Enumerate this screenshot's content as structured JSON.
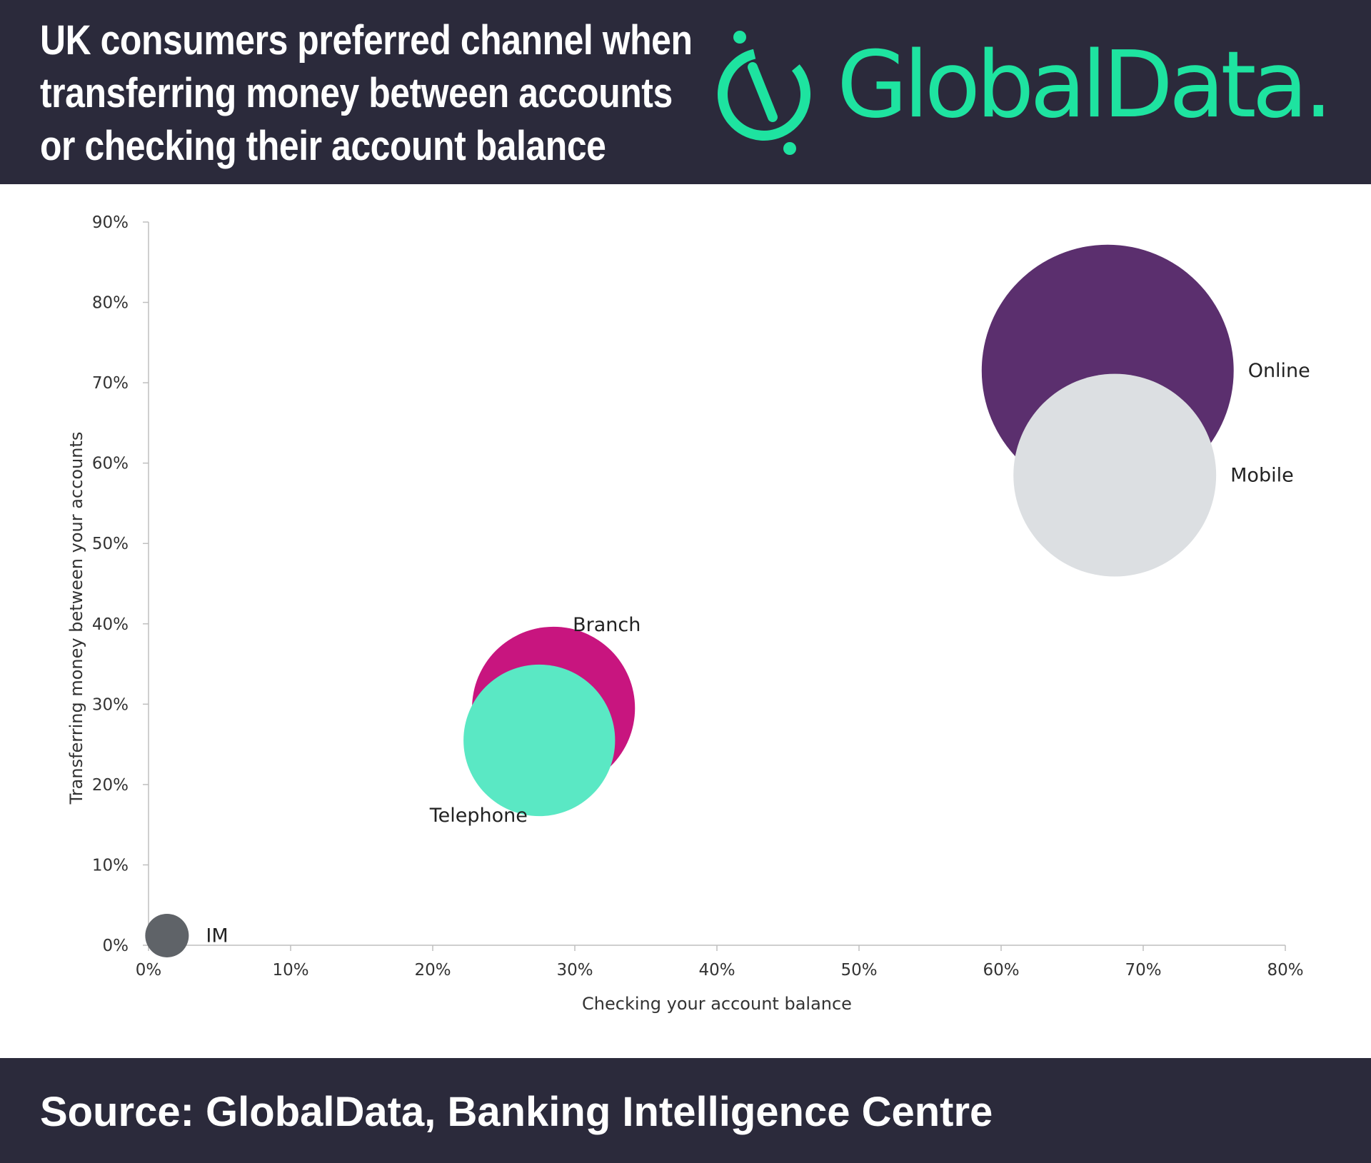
{
  "header": {
    "title_lines": [
      "UK consumers preferred channel when",
      "transferring money between accounts",
      "or checking their account balance"
    ],
    "logo_text": "GlobalData."
  },
  "footer": {
    "source": "Source: GlobalData, Banking Intelligence Centre"
  },
  "colors": {
    "header_bg": "#2b2a3b",
    "brand_green": "#1ee3a0",
    "online": "#5b2f6e",
    "mobile": "#dcdfe2",
    "branch": "#c8157f",
    "telephone": "#5ae8c4",
    "im": "#5f6368"
  },
  "chart_data": {
    "type": "bubble",
    "title": "UK consumers preferred channel when transferring money between accounts or checking their account balance",
    "xlabel": "Checking your account balance",
    "ylabel": "Transferring money between your accounts",
    "xlim": [
      0,
      80
    ],
    "ylim": [
      0,
      90
    ],
    "x_ticks": [
      "0%",
      "10%",
      "20%",
      "30%",
      "40%",
      "50%",
      "60%",
      "70%",
      "80%"
    ],
    "y_ticks": [
      "0%",
      "10%",
      "20%",
      "30%",
      "40%",
      "50%",
      "60%",
      "70%",
      "80%",
      "90%"
    ],
    "grid": false,
    "legend": "none",
    "series": [
      {
        "name": "Online",
        "x": 67.5,
        "y": 71.5,
        "size": 13.3
      },
      {
        "name": "Mobile",
        "x": 68.0,
        "y": 58.5,
        "size": 10.7
      },
      {
        "name": "Branch",
        "x": 28.5,
        "y": 29.5,
        "size": 8.6
      },
      {
        "name": "Telephone",
        "x": 27.5,
        "y": 25.5,
        "size": 8.0
      },
      {
        "name": "IM",
        "x": 1.3,
        "y": 1.2,
        "size": 2.3
      }
    ]
  }
}
